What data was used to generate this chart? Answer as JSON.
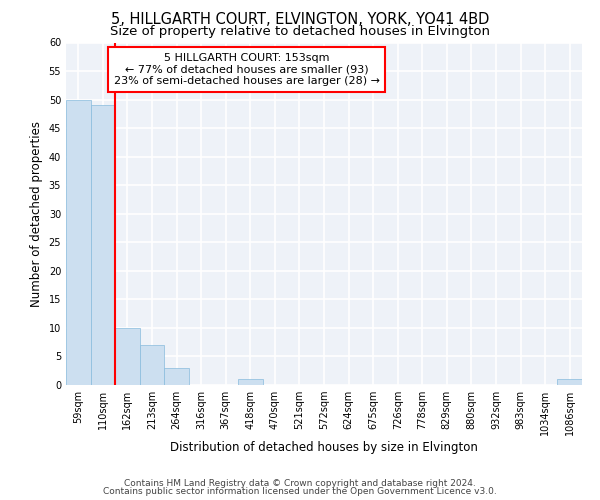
{
  "title": "5, HILLGARTH COURT, ELVINGTON, YORK, YO41 4BD",
  "subtitle": "Size of property relative to detached houses in Elvington",
  "xlabel": "Distribution of detached houses by size in Elvington",
  "ylabel": "Number of detached properties",
  "bar_color": "#ccdff0",
  "bar_edge_color": "#88bbdd",
  "background_color": "#eef2f8",
  "grid_color": "#ffffff",
  "fig_background": "#ffffff",
  "categories": [
    "59sqm",
    "110sqm",
    "162sqm",
    "213sqm",
    "264sqm",
    "316sqm",
    "367sqm",
    "418sqm",
    "470sqm",
    "521sqm",
    "572sqm",
    "624sqm",
    "675sqm",
    "726sqm",
    "778sqm",
    "829sqm",
    "880sqm",
    "932sqm",
    "983sqm",
    "1034sqm",
    "1086sqm"
  ],
  "values": [
    50,
    49,
    10,
    7,
    3,
    0,
    0,
    1,
    0,
    0,
    0,
    0,
    0,
    0,
    0,
    0,
    0,
    0,
    0,
    0,
    1
  ],
  "annotation_line1": "5 HILLGARTH COURT: 153sqm",
  "annotation_line2": "← 77% of detached houses are smaller (93)",
  "annotation_line3": "23% of semi-detached houses are larger (28) →",
  "vline_x_index": 2.0,
  "ylim": [
    0,
    60
  ],
  "yticks": [
    0,
    5,
    10,
    15,
    20,
    25,
    30,
    35,
    40,
    45,
    50,
    55,
    60
  ],
  "footnote1": "Contains HM Land Registry data © Crown copyright and database right 2024.",
  "footnote2": "Contains public sector information licensed under the Open Government Licence v3.0.",
  "title_fontsize": 10.5,
  "subtitle_fontsize": 9.5,
  "annotation_fontsize": 8,
  "tick_fontsize": 7,
  "ylabel_fontsize": 8.5,
  "xlabel_fontsize": 8.5,
  "footnote_fontsize": 6.5
}
